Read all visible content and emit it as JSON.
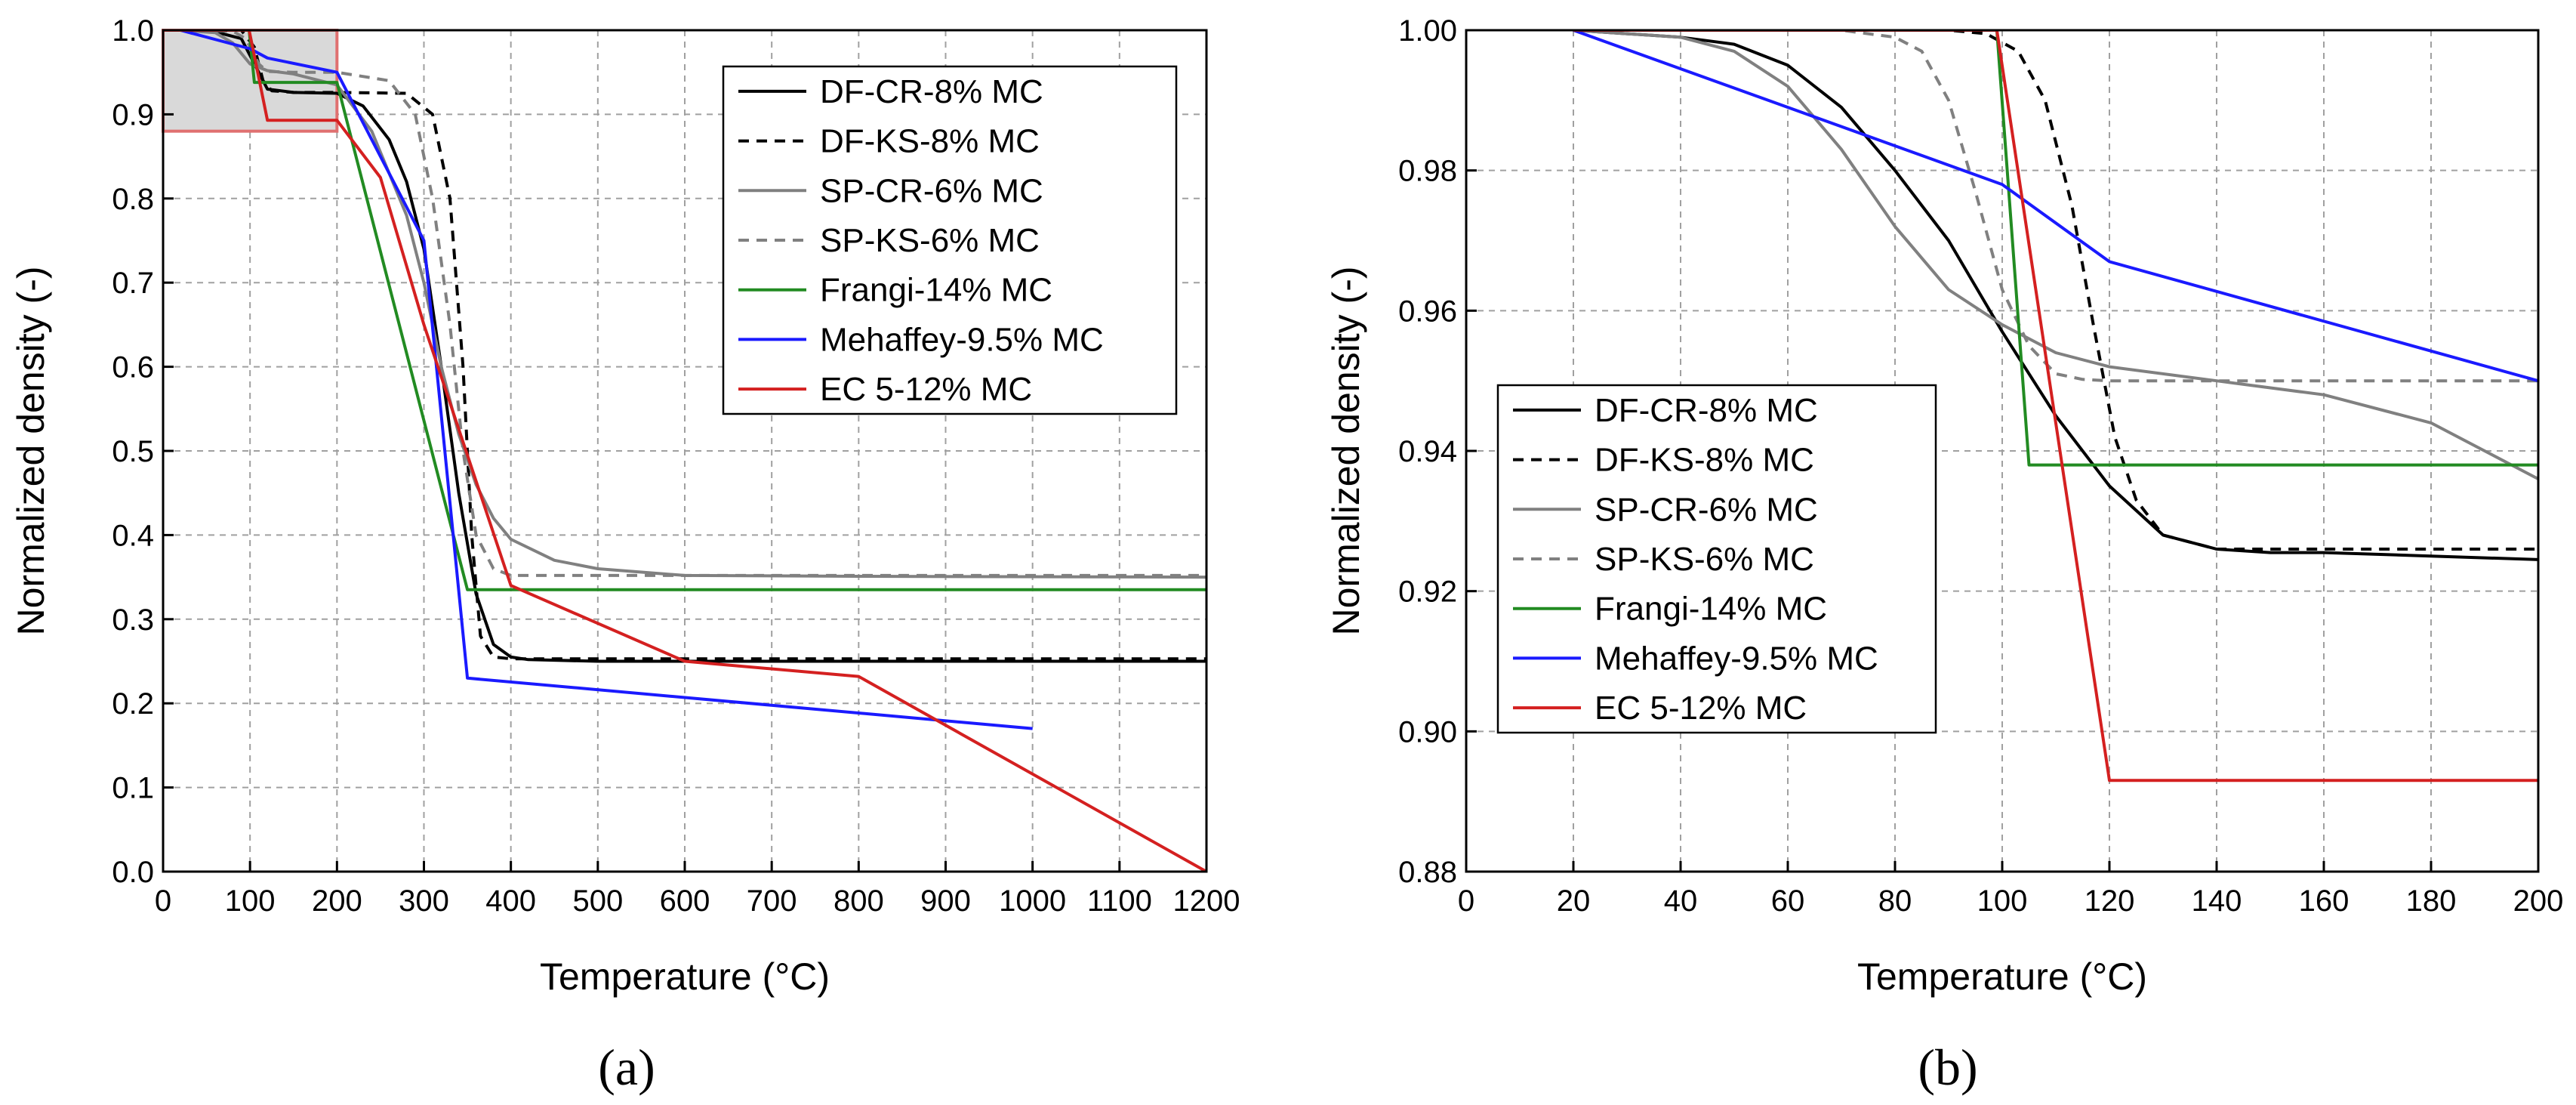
{
  "chart_data": [
    {
      "type": "line",
      "panel_label": "(a)",
      "xlabel": "Temperature (°C)",
      "ylabel": "Normalized density (-)",
      "xlim": [
        0,
        1200
      ],
      "ylim": [
        0,
        1.0
      ],
      "xticks": [
        0,
        100,
        200,
        300,
        400,
        500,
        600,
        700,
        800,
        900,
        1000,
        1100,
        1200
      ],
      "yticks": [
        0.0,
        0.1,
        0.2,
        0.3,
        0.4,
        0.5,
        0.6,
        0.7,
        0.8,
        0.9,
        1.0
      ],
      "ytick_labels": [
        "0.0",
        "0.1",
        "0.2",
        "0.3",
        "0.4",
        "0.5",
        "0.6",
        "0.7",
        "0.8",
        "0.9",
        "1.0"
      ],
      "grid": true,
      "legend_position": "top-right",
      "highlight_region": {
        "x": [
          0,
          200
        ],
        "y": [
          0.88,
          1.0
        ],
        "color": "#e07070"
      },
      "series": [
        {
          "name": "DF-CR-8% MC",
          "color": "#000000",
          "dash": "solid",
          "x": [
            20,
            60,
            90,
            110,
            120,
            150,
            200,
            230,
            260,
            280,
            300,
            320,
            340,
            360,
            380,
            400,
            420,
            500,
            1200
          ],
          "y": [
            1.0,
            0.998,
            0.99,
            0.95,
            0.93,
            0.926,
            0.925,
            0.91,
            0.87,
            0.82,
            0.74,
            0.6,
            0.45,
            0.33,
            0.27,
            0.255,
            0.252,
            0.25,
            0.25
          ]
        },
        {
          "name": "DF-KS-8% MC",
          "color": "#000000",
          "dash": "dashed",
          "x": [
            20,
            90,
            105,
            115,
            125,
            150,
            200,
            280,
            310,
            330,
            345,
            355,
            365,
            380,
            400,
            1200
          ],
          "y": [
            1.0,
            1.0,
            0.98,
            0.94,
            0.928,
            0.926,
            0.926,
            0.925,
            0.9,
            0.8,
            0.6,
            0.4,
            0.28,
            0.255,
            0.253,
            0.253
          ]
        },
        {
          "name": "SP-CR-6% MC",
          "color": "#808080",
          "dash": "solid",
          "x": [
            20,
            60,
            80,
            100,
            120,
            150,
            200,
            240,
            280,
            300,
            320,
            340,
            360,
            380,
            400,
            450,
            500,
            600,
            800,
            1200
          ],
          "y": [
            1.0,
            0.997,
            0.985,
            0.96,
            0.952,
            0.948,
            0.935,
            0.88,
            0.78,
            0.7,
            0.6,
            0.52,
            0.46,
            0.42,
            0.395,
            0.37,
            0.36,
            0.352,
            0.351,
            0.35
          ]
        },
        {
          "name": "SP-KS-6% MC",
          "color": "#808080",
          "dash": "dashed",
          "x": [
            20,
            80,
            95,
            110,
            120,
            150,
            200,
            260,
            290,
            310,
            330,
            345,
            360,
            380,
            400,
            1200
          ],
          "y": [
            1.0,
            0.999,
            0.99,
            0.96,
            0.951,
            0.95,
            0.95,
            0.94,
            0.9,
            0.8,
            0.65,
            0.5,
            0.4,
            0.36,
            0.352,
            0.352
          ]
        },
        {
          "name": "Frangi-14% MC",
          "color": "#228b22",
          "dash": "solid",
          "x": [
            0,
            99,
            105,
            200,
            350,
            1200
          ],
          "y": [
            1.0,
            1.0,
            0.938,
            0.938,
            0.335,
            0.335
          ]
        },
        {
          "name": "Mehaffey-9.5% MC",
          "color": "#1a1aff",
          "dash": "solid",
          "x": [
            20,
            100,
            120,
            200,
            300,
            350,
            1000
          ],
          "y": [
            1.0,
            0.978,
            0.967,
            0.95,
            0.75,
            0.23,
            0.17
          ]
        },
        {
          "name": "EC 5-12% MC",
          "color": "#d42020",
          "dash": "solid",
          "x": [
            0,
            99,
            120,
            200,
            250,
            300,
            400,
            600,
            800,
            1200
          ],
          "y": [
            1.0,
            1.0,
            0.893,
            0.893,
            0.825,
            0.65,
            0.34,
            0.25,
            0.232,
            0.0
          ]
        }
      ]
    },
    {
      "type": "line",
      "panel_label": "(b)",
      "xlabel": "Temperature (°C)",
      "ylabel": "Normalized density (-)",
      "xlim": [
        0,
        200
      ],
      "ylim": [
        0.88,
        1.0
      ],
      "xticks": [
        0,
        20,
        40,
        60,
        80,
        100,
        120,
        140,
        160,
        180,
        200
      ],
      "yticks": [
        0.88,
        0.9,
        0.92,
        0.94,
        0.96,
        0.98,
        1.0
      ],
      "ytick_labels": [
        "0.88",
        "0.90",
        "0.92",
        "0.94",
        "0.96",
        "0.98",
        "1.00"
      ],
      "grid": true,
      "legend_position": "bottom-left",
      "series": [
        {
          "name": "DF-CR-8% MC",
          "color": "#000000",
          "dash": "solid",
          "x": [
            20,
            40,
            50,
            60,
            70,
            80,
            90,
            100,
            110,
            120,
            130,
            140,
            150,
            160,
            180,
            200
          ],
          "y": [
            1.0,
            0.999,
            0.998,
            0.995,
            0.989,
            0.98,
            0.97,
            0.957,
            0.945,
            0.935,
            0.928,
            0.926,
            0.9255,
            0.9255,
            0.925,
            0.9245
          ]
        },
        {
          "name": "DF-KS-8% MC",
          "color": "#000000",
          "dash": "dashed",
          "x": [
            20,
            90,
            97,
            103,
            108,
            113,
            117,
            121,
            125,
            130,
            140,
            150,
            200
          ],
          "y": [
            1.0,
            1.0,
            0.9995,
            0.997,
            0.99,
            0.975,
            0.958,
            0.942,
            0.933,
            0.928,
            0.926,
            0.926,
            0.926
          ]
        },
        {
          "name": "SP-CR-6% MC",
          "color": "#808080",
          "dash": "solid",
          "x": [
            20,
            40,
            50,
            60,
            70,
            80,
            90,
            100,
            110,
            120,
            140,
            160,
            180,
            190,
            200
          ],
          "y": [
            1.0,
            0.999,
            0.997,
            0.992,
            0.983,
            0.972,
            0.963,
            0.958,
            0.954,
            0.952,
            0.95,
            0.948,
            0.944,
            0.94,
            0.936
          ]
        },
        {
          "name": "SP-KS-6% MC",
          "color": "#808080",
          "dash": "dashed",
          "x": [
            20,
            70,
            80,
            85,
            90,
            95,
            100,
            105,
            110,
            115,
            120,
            200
          ],
          "y": [
            1.0,
            1.0,
            0.999,
            0.997,
            0.99,
            0.977,
            0.963,
            0.955,
            0.951,
            0.9502,
            0.95,
            0.95
          ]
        },
        {
          "name": "Frangi-14% MC",
          "color": "#228b22",
          "dash": "solid",
          "x": [
            20,
            99,
            105,
            200
          ],
          "y": [
            1.0,
            1.0,
            0.938,
            0.938
          ]
        },
        {
          "name": "Mehaffey-9.5% MC",
          "color": "#1a1aff",
          "dash": "solid",
          "x": [
            20,
            100,
            120,
            200
          ],
          "y": [
            1.0,
            0.978,
            0.967,
            0.95
          ]
        },
        {
          "name": "EC 5-12% MC",
          "color": "#d42020",
          "dash": "solid",
          "x": [
            20,
            99,
            120,
            200
          ],
          "y": [
            1.0,
            1.0,
            0.893,
            0.893
          ]
        }
      ]
    }
  ]
}
